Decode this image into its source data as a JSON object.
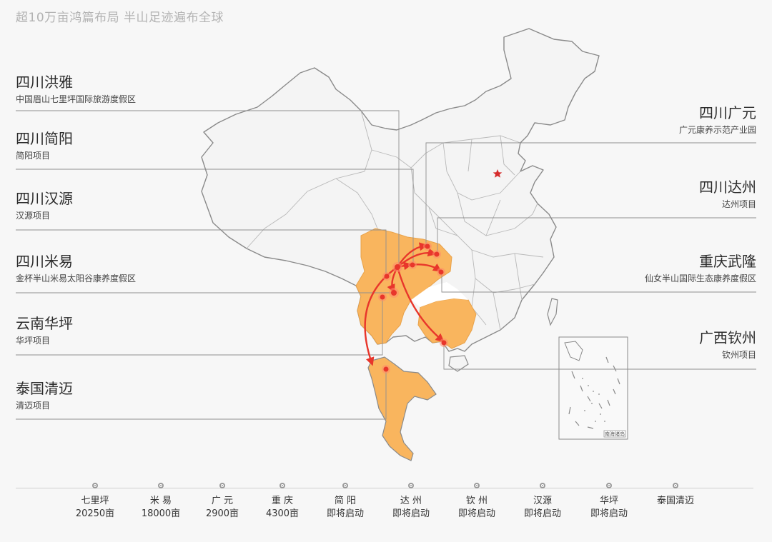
{
  "headline": "超10万亩鸿篇布局   半山足迹遍布全球",
  "left_labels": [
    {
      "name": "四川洪雅",
      "desc": "中国眉山七里坪国际旅游度假区"
    },
    {
      "name": "四川简阳",
      "desc": "简阳项目"
    },
    {
      "name": "四川汉源",
      "desc": "汉源项目"
    },
    {
      "name": "四川米易",
      "desc": "金杯半山米易太阳谷康养度假区"
    },
    {
      "name": "云南华坪",
      "desc": "华坪项目"
    },
    {
      "name": "泰国清迈",
      "desc": "清迈项目"
    }
  ],
  "right_labels": [
    {
      "name": "四川广元",
      "desc": "广元康养示范产业园"
    },
    {
      "name": "四川达州",
      "desc": "达州项目"
    },
    {
      "name": "重庆武隆",
      "desc": "仙女半山国际生态康养度假区"
    },
    {
      "name": "广西钦州",
      "desc": "钦州项目"
    }
  ],
  "inset_label": "南海诸岛",
  "colors": {
    "highlight_region": "#f9b55e",
    "arrow": "#e8362b",
    "capital_star": "#d62b2b",
    "border": "#9a9a9a",
    "background": "#f7f7f7"
  },
  "timeline": [
    {
      "name": "七里坪",
      "value": "20250亩"
    },
    {
      "name": "米 易",
      "value": "18000亩"
    },
    {
      "name": "广 元",
      "value": "2900亩"
    },
    {
      "name": "重 庆",
      "value": "4300亩"
    },
    {
      "name": "简 阳",
      "value": "即将启动"
    },
    {
      "name": "达 州",
      "value": "即将启动"
    },
    {
      "name": "钦 州",
      "value": "即将启动"
    },
    {
      "name": "汉源",
      "value": "即将启动"
    },
    {
      "name": "华坪",
      "value": "即将启动"
    },
    {
      "name": "泰国清迈",
      "value": ""
    }
  ]
}
